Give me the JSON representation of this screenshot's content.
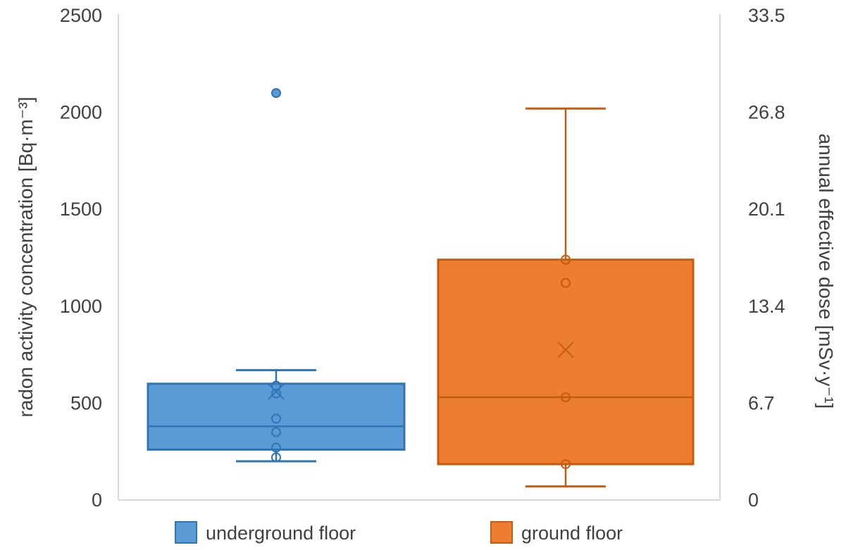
{
  "chart_data": {
    "type": "box",
    "ylabel_left": "radon activity concentration [Bq·m⁻³]",
    "ylabel_right": "annual effective dose [mSv·y⁻¹]",
    "ylim": [
      0,
      2500
    ],
    "left_ticks": [
      "0",
      "500",
      "1000",
      "1500",
      "2000",
      "2500"
    ],
    "left_tick_values": [
      0,
      500,
      1000,
      1500,
      2000,
      2500
    ],
    "right_ticks": [
      "0",
      "6.7",
      "13.4",
      "20.1",
      "26.8",
      "33.5"
    ],
    "grid": false,
    "legend_position": "bottom",
    "series": [
      {
        "name": "underground floor",
        "color": "#5B9BD5",
        "edge_color": "#2E75B6",
        "min": 200,
        "q1": 260,
        "median": 380,
        "q3": 600,
        "max": 670,
        "mean": 560,
        "points": [
          220,
          270,
          350,
          420,
          550,
          590
        ],
        "outliers": [
          2100
        ]
      },
      {
        "name": "ground floor",
        "color": "#ED7D31",
        "edge_color": "#C55A11",
        "min": 70,
        "q1": 185,
        "median": 530,
        "q3": 1240,
        "max": 2020,
        "mean": 775,
        "points": [
          185,
          530,
          1120,
          1240
        ],
        "outliers": []
      }
    ]
  }
}
